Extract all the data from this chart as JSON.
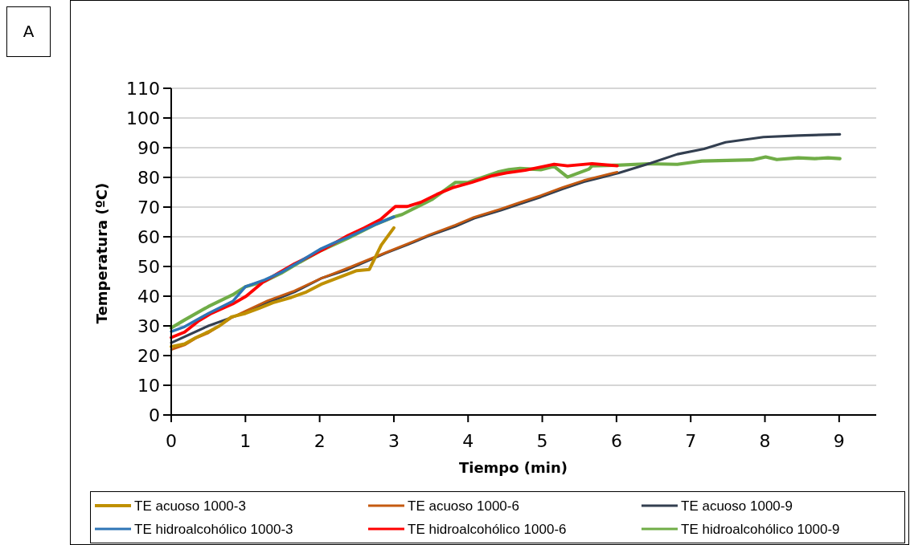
{
  "chart_data": {
    "type": "line",
    "xlabel": "Tiempo (min)",
    "ylabel": "Temperatura (ºC)",
    "annotations": [
      "A"
    ],
    "xlim": [
      0,
      9.5
    ],
    "xticks": [
      0,
      1,
      2,
      3,
      4,
      5,
      6,
      7,
      8,
      9
    ],
    "ylim": [
      0,
      110
    ],
    "yticks": [
      0,
      10,
      20,
      30,
      40,
      50,
      60,
      70,
      80,
      90,
      100,
      110
    ],
    "grid": "y",
    "legend": "bottom",
    "marker": "none",
    "line_style": "solid",
    "series": [
      {
        "name": "TE acuoso 1000-3",
        "color": "#bf9000",
        "x": [
          0,
          0.18,
          0.33,
          0.5,
          0.65,
          0.81,
          1.0,
          1.19,
          1.37,
          1.62,
          1.82,
          2.02,
          2.31,
          2.5,
          2.67,
          2.83,
          3.0
        ],
        "values": [
          23,
          23.9,
          26,
          28,
          30,
          33,
          34.2,
          36,
          37.8,
          39.6,
          41.4,
          44,
          46.8,
          48.6,
          49,
          57.2,
          63
        ]
      },
      {
        "name": "TE acuoso 1000-6",
        "color": "#c55a11",
        "x": [
          0,
          0.18,
          0.33,
          0.5,
          0.65,
          0.83,
          1.0,
          1.3,
          1.66,
          2.02,
          2.38,
          2.89,
          3.25,
          3.47,
          3.83,
          4.08,
          4.44,
          4.7,
          4.98,
          5.27,
          5.56,
          5.81,
          6.01
        ],
        "values": [
          22,
          23.5,
          25.8,
          27.6,
          30,
          33,
          35,
          38.5,
          41.8,
          46,
          49.5,
          54.7,
          58.3,
          60.6,
          64,
          66.6,
          69.4,
          71.6,
          73.9,
          76.6,
          79,
          80.6,
          81.8
        ]
      },
      {
        "name": "TE acuoso 1000-9",
        "color": "#333f50",
        "x": [
          0,
          0.5,
          1.0,
          1.3,
          1.66,
          2.02,
          2.38,
          2.89,
          3.25,
          3.47,
          3.83,
          4.08,
          4.44,
          4.7,
          4.98,
          5.27,
          5.56,
          5.81,
          6.03,
          6.46,
          6.82,
          7.18,
          7.47,
          7.98,
          8.45,
          9.01
        ],
        "values": [
          24.3,
          30,
          34.5,
          37.8,
          41.4,
          46,
          49,
          54.5,
          58,
          60.3,
          63.5,
          66.2,
          68.9,
          71.1,
          73.4,
          76.1,
          78.5,
          80.1,
          81.5,
          84.8,
          87.8,
          89.6,
          91.8,
          93.6,
          94.1,
          94.5
        ]
      },
      {
        "name": "TE hidroalcohólico 1000-3",
        "color": "#2e75b6",
        "x": [
          0,
          0.18,
          0.5,
          0.83,
          1.0,
          1.26,
          1.48,
          1.73,
          2.02,
          2.2,
          2.38,
          2.74,
          3.0
        ],
        "values": [
          28.1,
          29.7,
          34.2,
          38.3,
          43.2,
          45.5,
          48,
          51.6,
          56,
          58,
          59.8,
          64,
          66.7
        ]
      },
      {
        "name": "TE hidroalcohólico 1000-6",
        "color": "#ff0000",
        "x": [
          0,
          0.18,
          0.36,
          0.54,
          0.83,
          1.01,
          1.23,
          1.44,
          1.66,
          1.88,
          2.09,
          2.38,
          2.6,
          2.82,
          3.02,
          3.18,
          3.36,
          3.58,
          3.79,
          4.05,
          4.33,
          4.52,
          4.77,
          5.02,
          5.16,
          5.34,
          5.67,
          6.01
        ],
        "values": [
          26.1,
          27.9,
          31.5,
          34.2,
          37.4,
          40,
          44.6,
          47.7,
          50.9,
          53.6,
          56.3,
          60.4,
          63,
          65.8,
          70.2,
          70.2,
          71.6,
          74.3,
          76.5,
          78.3,
          80.6,
          81.5,
          82.4,
          83.7,
          84.4,
          83.9,
          84.6,
          83.9
        ]
      },
      {
        "name": "TE hidroalcohólico 1000-9",
        "color": "#70ad47",
        "x": [
          0,
          0.18,
          0.5,
          0.83,
          1.0,
          1.26,
          1.48,
          1.73,
          2.02,
          2.38,
          2.74,
          3.0,
          3.11,
          3.51,
          3.83,
          4.0,
          4.4,
          4.55,
          4.7,
          4.98,
          5.16,
          5.34,
          5.63,
          5.67,
          6.0,
          6.44,
          6.82,
          7.0,
          7.15,
          7.83,
          8.01,
          8.16,
          8.45,
          8.67,
          8.85,
          9.01
        ],
        "values": [
          29.3,
          32,
          36.5,
          40.5,
          43.2,
          45,
          47.7,
          51.4,
          55.4,
          59.5,
          64,
          66.7,
          67.5,
          72.5,
          78.3,
          78.3,
          81.8,
          82.6,
          83,
          82.6,
          83.7,
          80.1,
          82.8,
          83.9,
          84.1,
          84.6,
          84.4,
          85,
          85.5,
          85.9,
          86.9,
          86,
          86.6,
          86.3,
          86.6,
          86.3
        ]
      }
    ]
  }
}
